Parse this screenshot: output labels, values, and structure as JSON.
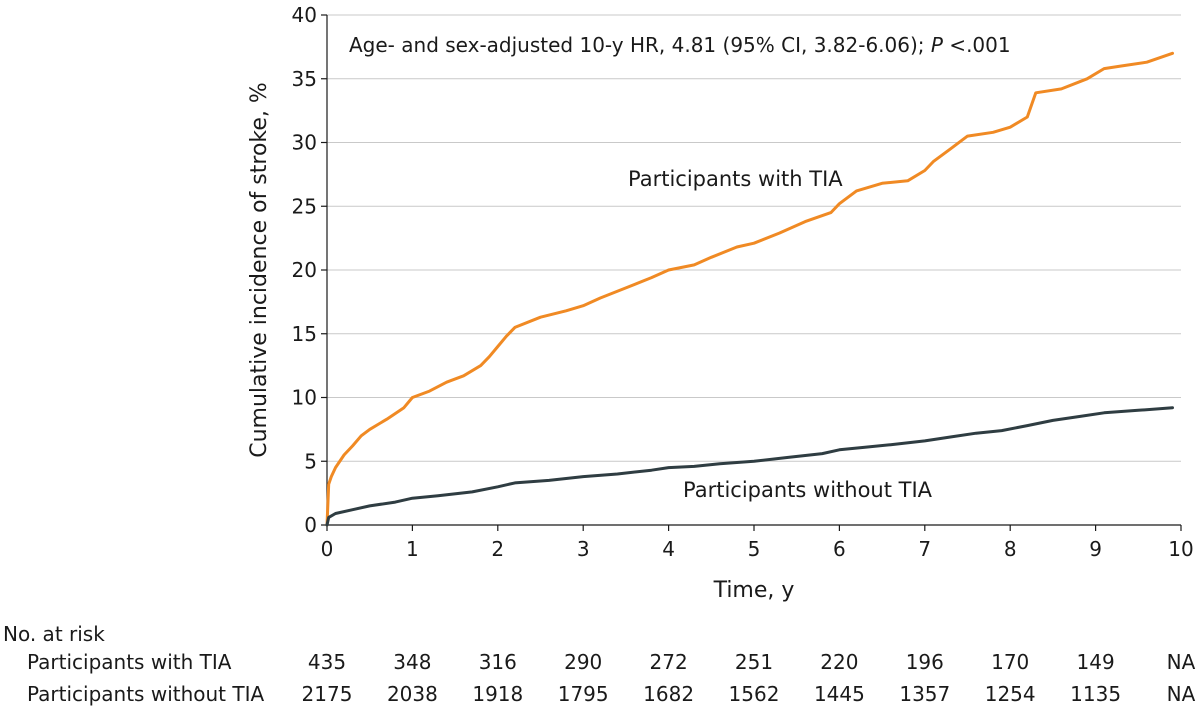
{
  "chart_data": {
    "type": "line",
    "title": "",
    "xlabel": "Time, y",
    "ylabel": "Cumulative incidence of stroke, %",
    "xlim": [
      0,
      10
    ],
    "ylim": [
      0,
      40
    ],
    "xticks": [
      0,
      1,
      2,
      3,
      4,
      5,
      6,
      7,
      8,
      9,
      10
    ],
    "yticks": [
      0,
      5,
      10,
      15,
      20,
      25,
      30,
      35,
      40
    ],
    "grid": "horizontal",
    "annotation": {
      "prefix": "Age- and sex-adjusted 10-y HR, 4.81 (95% CI, 3.82-6.06); ",
      "p_symbol": "P",
      "p_value": " <.001"
    },
    "series": [
      {
        "name": "Participants with TIA",
        "color": "#f08a24",
        "x": [
          0,
          0.02,
          0.05,
          0.1,
          0.2,
          0.3,
          0.4,
          0.5,
          0.7,
          0.9,
          1.0,
          1.2,
          1.4,
          1.6,
          1.8,
          1.9,
          2.0,
          2.1,
          2.2,
          2.5,
          2.8,
          3.0,
          3.2,
          3.5,
          3.8,
          4.0,
          4.3,
          4.5,
          4.8,
          5.0,
          5.3,
          5.6,
          5.9,
          6.0,
          6.2,
          6.5,
          6.8,
          7.0,
          7.1,
          7.3,
          7.5,
          7.8,
          8.0,
          8.2,
          8.3,
          8.6,
          8.9,
          9.1,
          9.3,
          9.6,
          9.9
        ],
        "values": [
          0,
          3.2,
          3.8,
          4.5,
          5.5,
          6.2,
          7.0,
          7.5,
          8.3,
          9.2,
          10.0,
          10.5,
          11.2,
          11.7,
          12.5,
          13.2,
          14.0,
          14.8,
          15.5,
          16.3,
          16.8,
          17.2,
          17.8,
          18.6,
          19.4,
          20.0,
          20.4,
          21.0,
          21.8,
          22.1,
          22.9,
          23.8,
          24.5,
          25.2,
          26.2,
          26.8,
          27.0,
          27.8,
          28.5,
          29.5,
          30.5,
          30.8,
          31.2,
          32.0,
          33.9,
          34.2,
          35.0,
          35.8,
          36.0,
          36.3,
          37.0
        ]
      },
      {
        "name": "Participants without TIA",
        "color": "#2f3d42",
        "x": [
          0,
          0.02,
          0.1,
          0.3,
          0.5,
          0.8,
          1.0,
          1.3,
          1.7,
          2.0,
          2.2,
          2.6,
          3.0,
          3.4,
          3.8,
          4.0,
          4.3,
          4.6,
          5.0,
          5.4,
          5.8,
          6.0,
          6.3,
          6.6,
          7.0,
          7.3,
          7.6,
          7.9,
          8.2,
          8.5,
          8.8,
          9.1,
          9.5,
          9.9
        ],
        "values": [
          0,
          0.6,
          0.9,
          1.2,
          1.5,
          1.8,
          2.1,
          2.3,
          2.6,
          3.0,
          3.3,
          3.5,
          3.8,
          4.0,
          4.3,
          4.5,
          4.6,
          4.8,
          5.0,
          5.3,
          5.6,
          5.9,
          6.1,
          6.3,
          6.6,
          6.9,
          7.2,
          7.4,
          7.8,
          8.2,
          8.5,
          8.8,
          9.0,
          9.2
        ]
      }
    ]
  },
  "risk_table": {
    "title": "No. at risk",
    "rows": [
      {
        "label": "Participants with TIA",
        "values": [
          "435",
          "348",
          "316",
          "290",
          "272",
          "251",
          "220",
          "196",
          "170",
          "149",
          "NA"
        ]
      },
      {
        "label": "Participants without TIA",
        "values": [
          "2175",
          "2038",
          "1918",
          "1795",
          "1682",
          "1562",
          "1445",
          "1357",
          "1254",
          "1135",
          "NA"
        ]
      }
    ]
  }
}
